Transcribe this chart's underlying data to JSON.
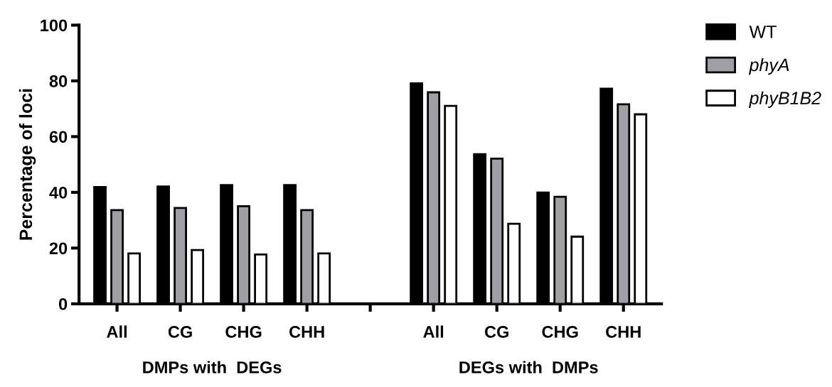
{
  "chart_data": {
    "type": "bar",
    "ylabel": "Percentage of loci",
    "categories": [
      "All",
      "CG",
      "CHG",
      "CHH",
      null,
      "All",
      "CG",
      "CHG",
      "CHH"
    ],
    "series": [
      {
        "name": "WT",
        "color": "#000000",
        "values": [
          41.9,
          42.1,
          42.6,
          42.6,
          null,
          79.1,
          53.7,
          39.9,
          77.2
        ]
      },
      {
        "name": "phyA",
        "color": "#a0a0a4",
        "values": [
          33.6,
          34.4,
          35.0,
          33.6,
          null,
          75.9,
          52.1,
          38.4,
          71.6
        ]
      },
      {
        "name": "phyB1B2",
        "color": "#ffffff",
        "values": [
          18.1,
          19.3,
          17.7,
          18.1,
          null,
          71.0,
          28.7,
          24.1,
          68.0
        ]
      }
    ],
    "ylim": [
      0,
      100
    ],
    "yticks": [
      0,
      20,
      40,
      60,
      80,
      100
    ],
    "grid": false,
    "legend": "top right",
    "annotations": [
      "DMPs with  DEGs",
      "DEGs with  DMPs"
    ]
  }
}
